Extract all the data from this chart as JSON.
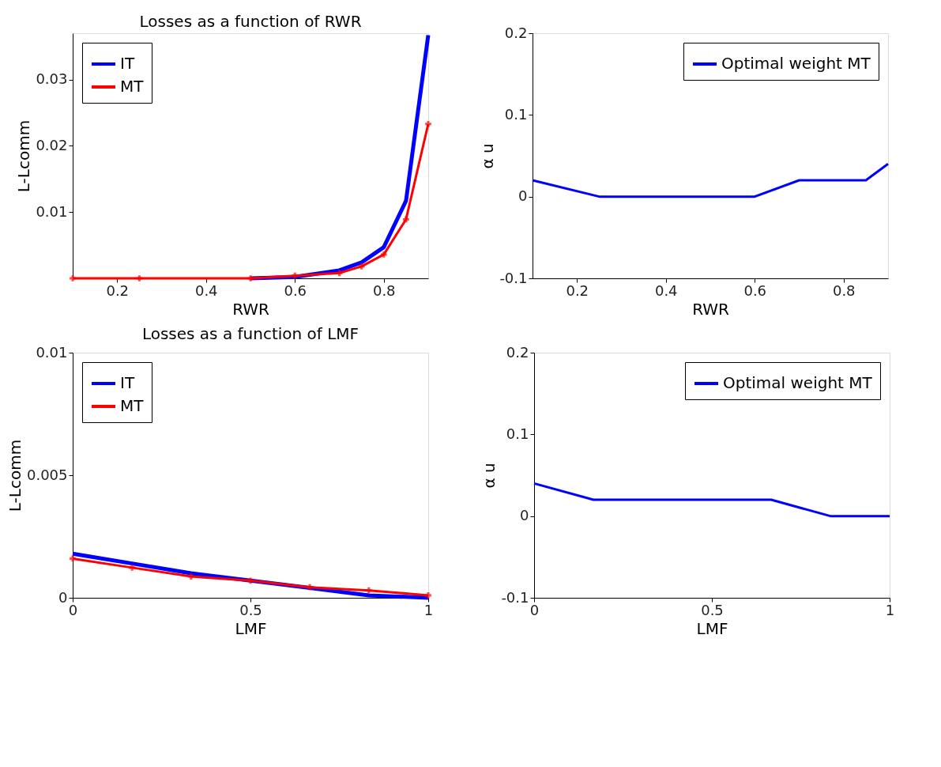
{
  "chart_data": [
    {
      "type": "line",
      "title": "Losses as a function of RWR",
      "xlabel": "RWR",
      "ylabel": "L-Lcomm",
      "x": [
        0.1,
        0.25,
        0.5,
        0.6,
        0.7,
        0.75,
        0.8,
        0.85,
        0.9
      ],
      "xlim": [
        0.1,
        0.9
      ],
      "xticks": [
        0.2,
        0.4,
        0.6,
        0.8
      ],
      "ylim": [
        0,
        0.037
      ],
      "yticks": [
        0.01,
        0.02,
        0.03
      ],
      "grid": false,
      "legend": "top left",
      "series": [
        {
          "name": "IT",
          "color": "#0000ff",
          "values": [
            null,
            null,
            0,
            0.0002,
            0.0012,
            0.0024,
            0.0047,
            0.0117,
            0.0367
          ]
        },
        {
          "name": "MT",
          "color": "#ff0000",
          "marker": "cross",
          "values": [
            0,
            0,
            0,
            0.0004,
            0.0008,
            0.0018,
            0.0036,
            0.0089,
            0.0233
          ]
        }
      ]
    },
    {
      "type": "line",
      "xlabel": "RWR",
      "ylabel": "α u",
      "x": [
        0.1,
        0.25,
        0.5,
        0.6,
        0.7,
        0.75,
        0.8,
        0.85,
        0.9
      ],
      "xlim": [
        0.1,
        0.9
      ],
      "xticks": [
        0.2,
        0.4,
        0.6,
        0.8
      ],
      "ylim": [
        -0.1,
        0.2
      ],
      "yticks": [
        -0.1,
        0,
        0.1,
        0.2
      ],
      "grid": false,
      "legend": "top right",
      "series": [
        {
          "name": "Optimal weight MT",
          "color": "#0000ff",
          "values": [
            0.02,
            0,
            0,
            0,
            0.02,
            0.02,
            0.02,
            0.02,
            0.04
          ]
        }
      ]
    },
    {
      "type": "line",
      "title": "Losses as a function of LMF",
      "xlabel": "LMF",
      "ylabel": "L-Lcomm",
      "x": [
        0,
        0.167,
        0.333,
        0.5,
        0.667,
        0.833,
        1
      ],
      "xlim": [
        0,
        1
      ],
      "xticks": [
        0,
        0.5,
        1
      ],
      "ylim": [
        0,
        0.01
      ],
      "yticks": [
        0,
        0.005,
        0.01
      ],
      "grid": false,
      "legend": "top left",
      "series": [
        {
          "name": "IT",
          "color": "#0000ff",
          "values": [
            0.0018,
            0.0014,
            0.001,
            0.0007,
            0.0004,
            0.0001,
            0
          ]
        },
        {
          "name": "MT",
          "color": "#ff0000",
          "marker": "cross",
          "values": [
            0.0016,
            0.00123,
            0.00087,
            0.0007,
            0.00043,
            0.0003,
            0.0001
          ]
        }
      ]
    },
    {
      "type": "line",
      "xlabel": "LMF",
      "ylabel": "α u",
      "x": [
        0,
        0.167,
        0.333,
        0.5,
        0.667,
        0.833,
        1
      ],
      "xlim": [
        0,
        1
      ],
      "xticks": [
        0,
        0.5,
        1
      ],
      "ylim": [
        -0.1,
        0.2
      ],
      "yticks": [
        -0.1,
        0,
        0.1,
        0.2
      ],
      "grid": false,
      "legend": "top right",
      "series": [
        {
          "name": "Optimal weight MT",
          "color": "#0000ff",
          "values": [
            0.04,
            0.02,
            0.02,
            0.02,
            0.02,
            0,
            0
          ]
        }
      ]
    }
  ]
}
